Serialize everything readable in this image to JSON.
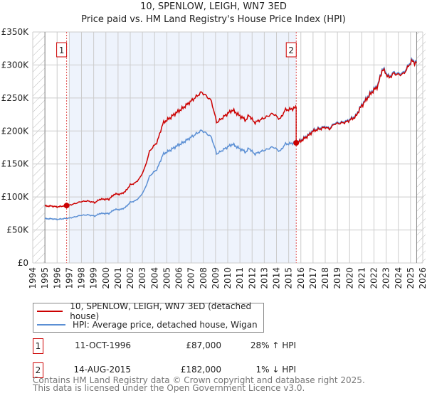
{
  "chart_data": {
    "type": "line",
    "title": "10, SPENLOW, LEIGH, WN7 3ED",
    "subtitle": "Price paid vs. HM Land Registry's House Price Index (HPI)",
    "xlim": [
      1994,
      2026
    ],
    "ylim": [
      0,
      350000
    ],
    "x_ticks": [
      "1994",
      "1995",
      "1996",
      "1997",
      "1998",
      "1999",
      "2000",
      "2001",
      "2002",
      "2003",
      "2004",
      "2005",
      "2006",
      "2007",
      "2008",
      "2009",
      "2010",
      "2011",
      "2012",
      "2013",
      "2014",
      "2015",
      "2016",
      "2017",
      "2018",
      "2019",
      "2020",
      "2021",
      "2022",
      "2023",
      "2024",
      "2025",
      "2026"
    ],
    "y_ticks": [
      {
        "value": 0,
        "label": "£0"
      },
      {
        "value": 50000,
        "label": "£50K"
      },
      {
        "value": 100000,
        "label": "£100K"
      },
      {
        "value": 150000,
        "label": "£150K"
      },
      {
        "value": 200000,
        "label": "£200K"
      },
      {
        "value": 250000,
        "label": "£250K"
      },
      {
        "value": 300000,
        "label": "£300K"
      },
      {
        "value": 350000,
        "label": "£350K"
      }
    ],
    "grid": true,
    "legend_placement": "below",
    "colors": {
      "price_paid": "#cc0000",
      "hpi": "#5b8fd4",
      "shade": "#eef3fc",
      "marker_line": "#e05050"
    },
    "series": [
      {
        "name": "HPI: Average price, detached house, Wigan",
        "key": "hpi",
        "x": [
          1995.0,
          1995.5,
          1996.0,
          1996.5,
          1997.0,
          1997.5,
          1997.9,
          1998.5,
          1999.1,
          1999.5,
          2000.25,
          2000.7,
          2001.2,
          2001.6,
          2002.0,
          2002.4,
          2002.8,
          2003.2,
          2003.6,
          2004.2,
          2004.7,
          2005.2,
          2005.7,
          2006.2,
          2006.7,
          2007.2,
          2007.85,
          2008.2,
          2008.65,
          2009.1,
          2009.5,
          2010.0,
          2010.4,
          2011.0,
          2011.5,
          2011.75,
          2012.2,
          2012.75,
          2013.2,
          2013.7,
          2014.3,
          2014.7,
          2015.2,
          2015.6,
          2016.0,
          2016.6,
          2017.0,
          2017.5,
          2018.0,
          2018.35,
          2018.75,
          2019.25,
          2019.75,
          2020.5,
          2020.9,
          2021.4,
          2021.9,
          2022.3,
          2022.7,
          2023.25,
          2023.6,
          2024.0,
          2024.4,
          2024.6,
          2025.1,
          2025.35,
          2025.5
        ],
        "values": [
          67000,
          67000,
          66000,
          67000,
          68000,
          70000,
          72000,
          73000,
          71000,
          75000,
          75000,
          81000,
          81000,
          84000,
          92000,
          94000,
          100000,
          112000,
          132000,
          142000,
          165000,
          170000,
          176000,
          181000,
          187000,
          193000,
          201000,
          197000,
          191000,
          165000,
          170000,
          176000,
          180000,
          173000,
          168000,
          174000,
          165000,
          169000,
          172000,
          176000,
          169000,
          180000,
          181000,
          183000,
          186000,
          194000,
          201000,
          204000,
          207000,
          204000,
          212000,
          213000,
          215000,
          223000,
          237000,
          250000,
          262000,
          269000,
          296000,
          282000,
          289000,
          287000,
          288000,
          293000,
          308000,
          305000,
          306000
        ]
      },
      {
        "name": "10, SPENLOW, LEIGH, WN7 3ED (detached house)",
        "key": "price_paid",
        "derived": "sale prices indexed by HPI"
      }
    ],
    "sales": [
      {
        "id": "1",
        "x": 1996.78,
        "date": "11-OCT-1996",
        "price": 87000,
        "price_label": "£87,000",
        "hpi_diff": "28% ↑ HPI"
      },
      {
        "id": "2",
        "x": 2015.62,
        "date": "14-AUG-2015",
        "price": 182000,
        "price_label": "£182,000",
        "hpi_diff": "1% ↓ HPI"
      }
    ]
  },
  "legend": {
    "price_paid": "10, SPENLOW, LEIGH, WN7 3ED (detached house)",
    "hpi": "HPI: Average price, detached house, Wigan"
  },
  "footer": {
    "line1": "Contains HM Land Registry data © Crown copyright and database right 2025.",
    "line2": "This data is licensed under the Open Government Licence v3.0."
  }
}
